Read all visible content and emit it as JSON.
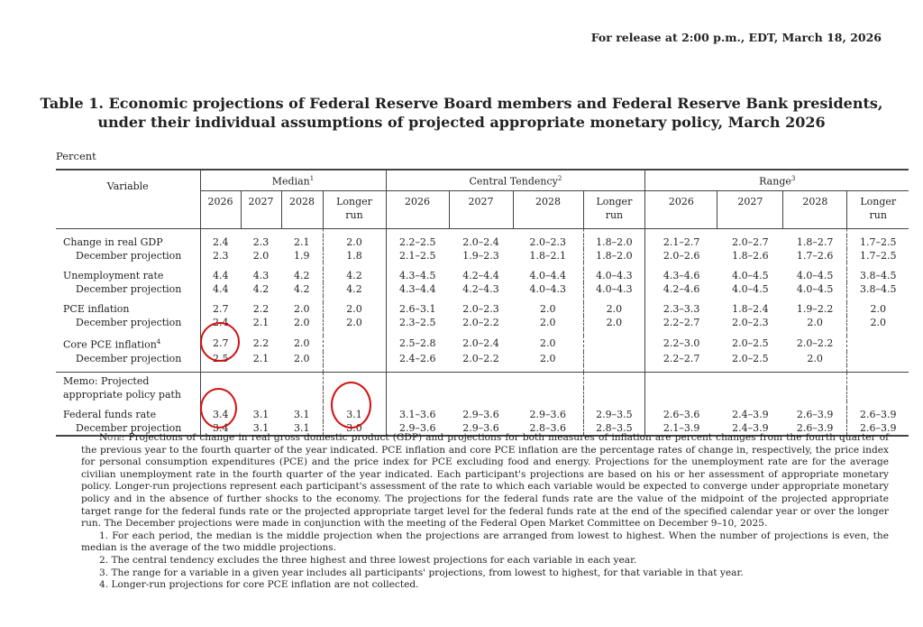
{
  "release": "For release at 2:00 p.m., EDT, March 18, 2026",
  "title_line1": "Table 1. Economic projections of Federal Reserve Board members and Federal Reserve Bank presidents,",
  "title_line2": "under their individual assumptions of projected appropriate monetary policy, March 2026",
  "unit": "Percent",
  "header": {
    "variable": "Variable",
    "groups": [
      {
        "label": "Median",
        "sup": "1"
      },
      {
        "label": "Central Tendency",
        "sup": "2"
      },
      {
        "label": "Range",
        "sup": "3"
      }
    ],
    "years": [
      "2026",
      "2027",
      "2028",
      "Longer run"
    ]
  },
  "rows": [
    {
      "label": "Change in real GDP",
      "median": [
        "2.4",
        "2.3",
        "2.1",
        "2.0"
      ],
      "ct": [
        "2.2–2.5",
        "2.0–2.4",
        "2.0–2.3",
        "1.8–2.0"
      ],
      "range": [
        "2.1–2.7",
        "2.0–2.7",
        "1.8–2.7",
        "1.7–2.5"
      ]
    },
    {
      "label": "December projection",
      "median": [
        "2.3",
        "2.0",
        "1.9",
        "1.8"
      ],
      "ct": [
        "2.1–2.5",
        "1.9–2.3",
        "1.8–2.1",
        "1.8–2.0"
      ],
      "range": [
        "2.0–2.6",
        "1.8–2.6",
        "1.7–2.6",
        "1.7–2.5"
      ]
    },
    {
      "label": "Unemployment rate",
      "median": [
        "4.4",
        "4.3",
        "4.2",
        "4.2"
      ],
      "ct": [
        "4.3–4.5",
        "4.2–4.4",
        "4.0–4.4",
        "4.0–4.3"
      ],
      "range": [
        "4.3–4.6",
        "4.0–4.5",
        "4.0–4.5",
        "3.8–4.5"
      ]
    },
    {
      "label": "December projection",
      "median": [
        "4.4",
        "4.2",
        "4.2",
        "4.2"
      ],
      "ct": [
        "4.3–4.4",
        "4.2–4.3",
        "4.0–4.3",
        "4.0–4.3"
      ],
      "range": [
        "4.2–4.6",
        "4.0–4.5",
        "4.0–4.5",
        "3.8–4.5"
      ]
    },
    {
      "label": "PCE inflation",
      "median": [
        "2.7",
        "2.2",
        "2.0",
        "2.0"
      ],
      "ct": [
        "2.6–3.1",
        "2.0–2.3",
        "2.0",
        "2.0"
      ],
      "range": [
        "2.3–3.3",
        "1.8–2.4",
        "1.9–2.2",
        "2.0"
      ]
    },
    {
      "label": "December projection",
      "median": [
        "2.4",
        "2.1",
        "2.0",
        "2.0"
      ],
      "ct": [
        "2.3–2.5",
        "2.0–2.2",
        "2.0",
        "2.0"
      ],
      "range": [
        "2.2–2.7",
        "2.0–2.3",
        "2.0",
        "2.0"
      ]
    },
    {
      "label": "Core PCE inflation",
      "sup": "4",
      "median": [
        "2.7",
        "2.2",
        "2.0",
        ""
      ],
      "ct": [
        "2.5–2.8",
        "2.0–2.4",
        "2.0",
        ""
      ],
      "range": [
        "2.2–3.0",
        "2.0–2.5",
        "2.0–2.2",
        ""
      ]
    },
    {
      "label": "December projection",
      "median": [
        "2.5",
        "2.1",
        "2.0",
        ""
      ],
      "ct": [
        "2.4–2.6",
        "2.0–2.2",
        "2.0",
        ""
      ],
      "range": [
        "2.2–2.7",
        "2.0–2.5",
        "2.0",
        ""
      ]
    },
    {
      "label": "Federal funds rate",
      "median": [
        "3.4",
        "3.1",
        "3.1",
        "3.1"
      ],
      "ct": [
        "3.1–3.6",
        "2.9–3.6",
        "2.9–3.6",
        "2.9–3.5"
      ],
      "range": [
        "2.6–3.6",
        "2.4–3.9",
        "2.6–3.9",
        "2.6–3.9"
      ]
    },
    {
      "label": "December projection",
      "median": [
        "3.4",
        "3.1",
        "3.1",
        "3.0"
      ],
      "ct": [
        "2.9–3.6",
        "2.9–3.6",
        "2.8–3.6",
        "2.8–3.5"
      ],
      "range": [
        "2.1–3.9",
        "2.4–3.9",
        "2.6–3.9",
        "2.6–3.9"
      ]
    }
  ],
  "memo_line1": "Memo: Projected",
  "memo_line2": "appropriate policy path",
  "annotation_color": "#d11111",
  "notes": {
    "note_label": "Note",
    "note_text": ": Projections of change in real gross domestic product (GDP) and projections for both measures of inflation are percent changes from the fourth quarter of the previous year to the fourth quarter of the year indicated. PCE inflation and core PCE inflation are the percentage rates of change in, respectively, the price index for personal consumption expenditures (PCE) and the price index for PCE excluding food and energy. Projections for the unemployment rate are for the average civilian unemployment rate in the fourth quarter of the year indicated. Each participant's projections are based on his or her assessment of appropriate monetary policy. Longer-run projections represent each participant's assessment of the rate to which each variable would be expected to converge under appropriate monetary policy and in the absence of further shocks to the economy. The projections for the federal funds rate are the value of the midpoint of the projected appropriate target range for the federal funds rate or the projected appropriate target level for the federal funds rate at the end of the specified calendar year or over the longer run. The December projections were made in conjunction with the meeting of the Federal Open Market Committee on December 9–10, 2025.",
    "footnotes": [
      "1. For each period, the median is the middle projection when the projections are arranged from lowest to highest. When the number of projections is even, the median is the average of the two middle projections.",
      "2. The central tendency excludes the three highest and three lowest projections for each variable in each year.",
      "3. The range for a variable in a given year includes all participants' projections, from lowest to highest, for that variable in that year.",
      "4. Longer-run projections for core PCE inflation are not collected."
    ]
  }
}
